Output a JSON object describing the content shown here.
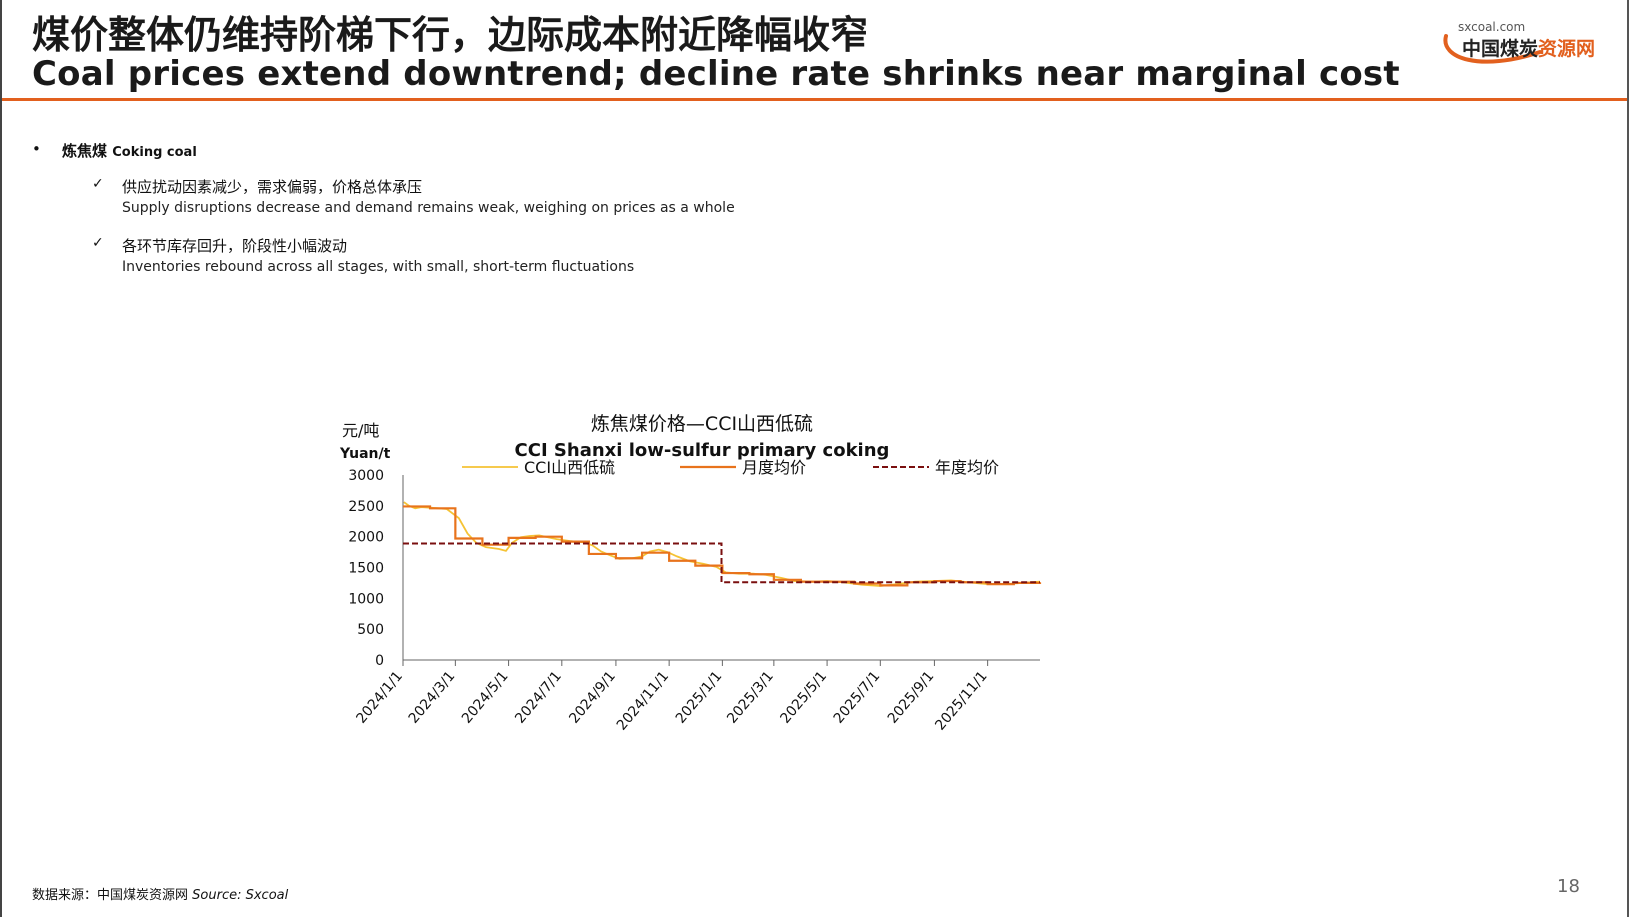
{
  "header": {
    "title_cn": "煤价整体仍维持阶梯下行，边际成本附近降幅收窄",
    "title_en": "Coal prices extend downtrend; decline rate shrinks near marginal cost",
    "logo_url": "sxcoal.com",
    "logo_text_main": "中国煤炭",
    "logo_text_accent": "资源网"
  },
  "content": {
    "bullet_cn": "炼焦煤",
    "bullet_en": "Coking coal",
    "points": [
      {
        "cn": "供应扰动因素减少，需求偏弱，价格总体承压",
        "en": "Supply disruptions decrease and demand remains weak, weighing on prices as a whole"
      },
      {
        "cn": "各环节库存回升，阶段性小幅波动",
        "en": "Inventories rebound across all stages, with small, short-term fluctuations"
      }
    ],
    "bullet_glyph": "•",
    "check_glyph": "✓"
  },
  "chart_data": {
    "type": "line",
    "title": "炼焦煤价格—CCI山西低硫",
    "subtitle": "CCI Shanxi low-sulfur primary coking",
    "ylabel_cn": "元/吨",
    "ylabel_en": "Yuan/t",
    "ylim": [
      0,
      3000
    ],
    "yticks": [
      0,
      500,
      1000,
      1500,
      2000,
      2500,
      3000
    ],
    "xlim": [
      "2024-01-01",
      "2025-12-31"
    ],
    "xticks": [
      "2024/1/1",
      "2024/3/1",
      "2024/5/1",
      "2024/7/1",
      "2024/9/1",
      "2024/11/1",
      "2025/1/1",
      "2025/3/1",
      "2025/5/1",
      "2025/7/1",
      "2025/9/1",
      "2025/11/1"
    ],
    "xtick_dates": [
      "2024-01-01",
      "2024-03-01",
      "2024-05-01",
      "2024-07-01",
      "2024-09-01",
      "2024-11-01",
      "2025-01-01",
      "2025-03-01",
      "2025-05-01",
      "2025-07-01",
      "2025-09-01",
      "2025-11-01"
    ],
    "legend_placement": "top",
    "grid": false,
    "series": [
      {
        "name": "CCI山西低硫",
        "style": "solid-thin",
        "color": "#f5c335",
        "points": [
          [
            "2024-01-02",
            2560
          ],
          [
            "2024-01-08",
            2500
          ],
          [
            "2024-01-15",
            2460
          ],
          [
            "2024-01-22",
            2480
          ],
          [
            "2024-02-01",
            2470
          ],
          [
            "2024-02-20",
            2450
          ],
          [
            "2024-03-05",
            2300
          ],
          [
            "2024-03-15",
            2050
          ],
          [
            "2024-03-25",
            1900
          ],
          [
            "2024-04-05",
            1830
          ],
          [
            "2024-04-20",
            1800
          ],
          [
            "2024-04-28",
            1770
          ],
          [
            "2024-05-05",
            1900
          ],
          [
            "2024-05-15",
            1990
          ],
          [
            "2024-05-25",
            2010
          ],
          [
            "2024-06-05",
            2020
          ],
          [
            "2024-06-15",
            1990
          ],
          [
            "2024-06-25",
            1960
          ],
          [
            "2024-07-10",
            1930
          ],
          [
            "2024-07-25",
            1910
          ],
          [
            "2024-08-05",
            1860
          ],
          [
            "2024-08-15",
            1760
          ],
          [
            "2024-08-25",
            1700
          ],
          [
            "2024-09-05",
            1640
          ],
          [
            "2024-09-20",
            1650
          ],
          [
            "2024-10-01",
            1680
          ],
          [
            "2024-10-10",
            1760
          ],
          [
            "2024-10-20",
            1790
          ],
          [
            "2024-10-30",
            1750
          ],
          [
            "2024-11-10",
            1680
          ],
          [
            "2024-11-25",
            1600
          ],
          [
            "2024-12-10",
            1560
          ],
          [
            "2024-12-25",
            1510
          ],
          [
            "2025-01-05",
            1420
          ],
          [
            "2025-01-20",
            1400
          ],
          [
            "2025-02-05",
            1400
          ],
          [
            "2025-02-20",
            1380
          ],
          [
            "2025-03-10",
            1330
          ],
          [
            "2025-03-25",
            1280
          ],
          [
            "2025-04-15",
            1270
          ],
          [
            "2025-05-01",
            1280
          ],
          [
            "2025-05-20",
            1260
          ],
          [
            "2025-06-10",
            1220
          ],
          [
            "2025-07-01",
            1200
          ],
          [
            "2025-07-20",
            1230
          ],
          [
            "2025-08-10",
            1270
          ],
          [
            "2025-09-01",
            1280
          ],
          [
            "2025-09-20",
            1290
          ],
          [
            "2025-10-10",
            1260
          ],
          [
            "2025-11-01",
            1230
          ],
          [
            "2025-11-20",
            1230
          ],
          [
            "2025-12-10",
            1250
          ],
          [
            "2025-12-31",
            1270
          ]
        ]
      },
      {
        "name": "月度均价",
        "style": "solid-step",
        "color": "#e8731c",
        "points": [
          [
            "2024-01-01",
            2490
          ],
          [
            "2024-02-01",
            2460
          ],
          [
            "2024-03-01",
            1970
          ],
          [
            "2024-04-01",
            1870
          ],
          [
            "2024-05-01",
            1980
          ],
          [
            "2024-06-01",
            2000
          ],
          [
            "2024-07-01",
            1920
          ],
          [
            "2024-08-01",
            1720
          ],
          [
            "2024-09-01",
            1650
          ],
          [
            "2024-10-01",
            1740
          ],
          [
            "2024-11-01",
            1610
          ],
          [
            "2024-12-01",
            1530
          ],
          [
            "2025-01-01",
            1410
          ],
          [
            "2025-02-01",
            1390
          ],
          [
            "2025-03-01",
            1300
          ],
          [
            "2025-04-01",
            1270
          ],
          [
            "2025-05-01",
            1270
          ],
          [
            "2025-06-01",
            1240
          ],
          [
            "2025-07-01",
            1210
          ],
          [
            "2025-08-01",
            1260
          ],
          [
            "2025-09-01",
            1280
          ],
          [
            "2025-10-01",
            1260
          ],
          [
            "2025-11-01",
            1230
          ],
          [
            "2025-12-01",
            1250
          ],
          [
            "2025-12-31",
            1260
          ]
        ]
      },
      {
        "name": "年度均价",
        "style": "dashed-step",
        "color": "#7a0f0f",
        "points": [
          [
            "2024-01-01",
            1890
          ],
          [
            "2024-12-31",
            1890
          ],
          [
            "2025-01-01",
            1260
          ],
          [
            "2025-12-31",
            1260
          ]
        ]
      }
    ]
  },
  "footer": {
    "source_cn": "数据来源：中国煤炭资源网",
    "source_en": "Source: Sxcoal",
    "page_number": "18"
  },
  "colors": {
    "accent": "#e2601e",
    "text": "#1a1a1a"
  }
}
